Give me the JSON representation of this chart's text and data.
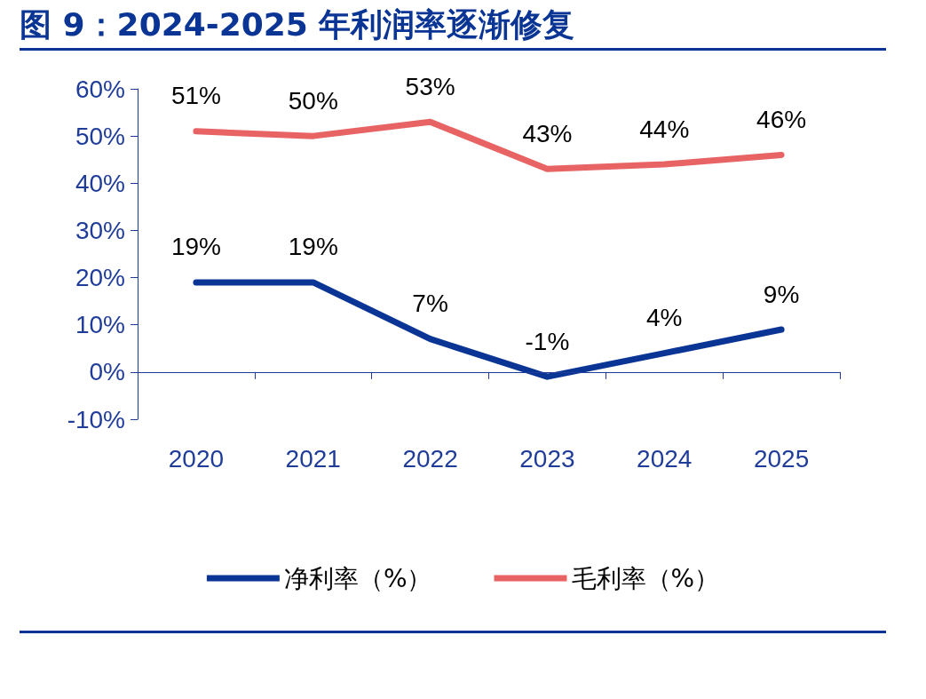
{
  "chart_data": {
    "type": "line",
    "title": "图 9：2024-2025 年利润率逐渐修复",
    "categories": [
      "2020",
      "2021",
      "2022",
      "2023",
      "2024",
      "2025"
    ],
    "series": [
      {
        "name": "净利率（%）",
        "color": "#0a3595",
        "values": [
          19,
          19,
          7,
          -1,
          4,
          9
        ],
        "value_labels": [
          "19%",
          "19%",
          "7%",
          "-1%",
          "4%",
          "9%"
        ]
      },
      {
        "name": "毛利率（%）",
        "color": "#e86464",
        "values": [
          51,
          50,
          53,
          43,
          44,
          46
        ],
        "value_labels": [
          "51%",
          "50%",
          "53%",
          "43%",
          "44%",
          "46%"
        ]
      }
    ],
    "ylim": [
      -10,
      60
    ],
    "yticks": [
      {
        "value": -10,
        "label": "-10%"
      },
      {
        "value": 0,
        "label": "0%"
      },
      {
        "value": 10,
        "label": "10%"
      },
      {
        "value": 20,
        "label": "20%"
      },
      {
        "value": 30,
        "label": "30%"
      },
      {
        "value": 40,
        "label": "40%"
      },
      {
        "value": 50,
        "label": "50%"
      },
      {
        "value": 60,
        "label": "60%"
      }
    ],
    "ref_lines": [
      {
        "axis": "y",
        "value": 0,
        "color": "#1f3c99",
        "line_style": "solid"
      }
    ],
    "grid": false,
    "legend": "bottom",
    "marker": "none",
    "line_style": "solid"
  }
}
